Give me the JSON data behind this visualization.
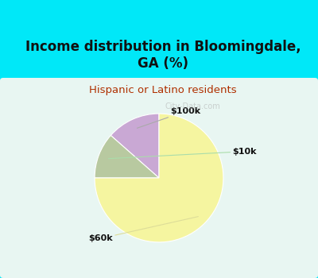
{
  "title": "Income distribution in Bloomingdale,\nGA (%)",
  "subtitle": "Hispanic or Latino residents",
  "title_color": "#111111",
  "subtitle_color": "#b03000",
  "slices": [
    {
      "label": "$100k",
      "value": 13.5,
      "color": "#c9a8d4"
    },
    {
      "label": "$10k",
      "value": 11.5,
      "color": "#b8c9a0"
    },
    {
      "label": "$60k",
      "value": 75.0,
      "color": "#f5f5a0"
    }
  ],
  "startangle": 90,
  "bg_color": "#00e8f8",
  "chart_bg_left": "#c5e8e0",
  "chart_bg_center": "#f0f8f5",
  "watermark": "City-Data.com",
  "figsize": [
    4.0,
    3.5
  ],
  "dpi": 100,
  "title_fontsize": 12,
  "subtitle_fontsize": 9.5
}
